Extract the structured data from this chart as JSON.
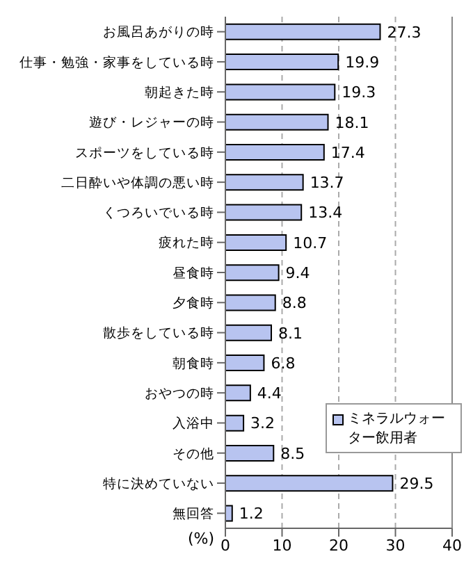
{
  "chart_data": {
    "type": "bar",
    "orientation": "horizontal",
    "xlabel": "(%)",
    "categories": [
      "お風呂あがりの時",
      "仕事・勉強・家事をしている時",
      "朝起きた時",
      "遊び・レジャーの時",
      "スポーツをしている時",
      "二日酔いや体調の悪い時",
      "くつろいでいる時",
      "疲れた時",
      "昼食時",
      "夕食時",
      "散歩をしている時",
      "朝食時",
      "おやつの時",
      "入浴中",
      "その他",
      "特に決めていない",
      "無回答"
    ],
    "series": [
      {
        "name": "ミネラルウォーター飲用者",
        "color": "#b8c4f0",
        "values": [
          27.3,
          19.9,
          19.3,
          18.1,
          17.4,
          13.7,
          13.4,
          10.7,
          9.4,
          8.8,
          8.1,
          6.8,
          4.4,
          3.2,
          8.5,
          29.5,
          1.2
        ]
      }
    ],
    "xlim": [
      0,
      40
    ],
    "xticks": [
      0,
      10,
      20,
      30,
      40
    ],
    "grid": "x",
    "legend": "bottom right",
    "data_labels": true
  }
}
